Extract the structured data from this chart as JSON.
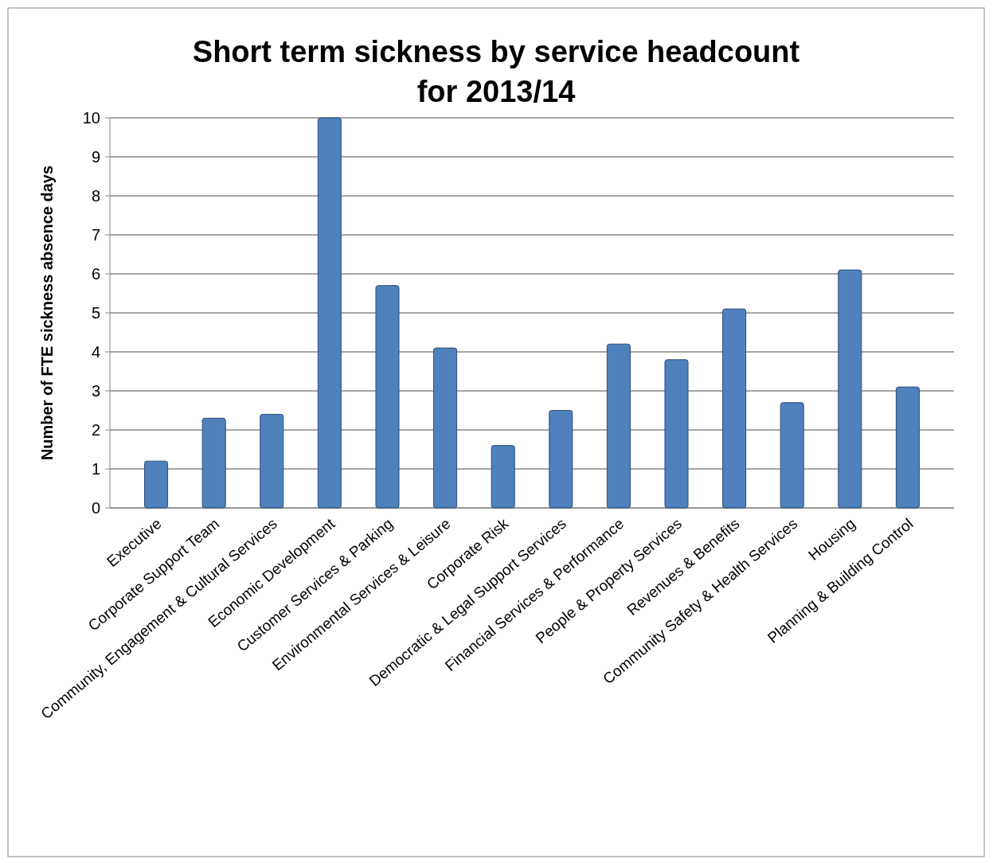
{
  "chart_data": {
    "type": "bar",
    "title": "Short term sickness by service headcount for 2013/14",
    "ylabel": "Number of FTE sickness absence days",
    "categories": [
      "Executive",
      "Corporate Support Team",
      "Community, Engagement & Cultural Services",
      "Economic Development",
      "Customer Services & Parking",
      "Environmental Services & Leisure",
      "Corporate Risk",
      "Democratic & Legal Support Services",
      "Financial Services & Performance",
      "People & Property Services",
      "Revenues & Benefits",
      "Community Safety & Health Services",
      "Housing",
      "Planning & Building Control"
    ],
    "values": [
      1.2,
      2.3,
      2.4,
      10,
      5.7,
      4.1,
      1.6,
      2.5,
      4.2,
      3.8,
      5.1,
      2.7,
      6.1,
      3.1
    ],
    "color": "#4f81bd",
    "ylim": [
      0,
      10
    ],
    "yticks": [
      0,
      1,
      2,
      3,
      4,
      5,
      6,
      7,
      8,
      9,
      10
    ],
    "grid": "y"
  }
}
